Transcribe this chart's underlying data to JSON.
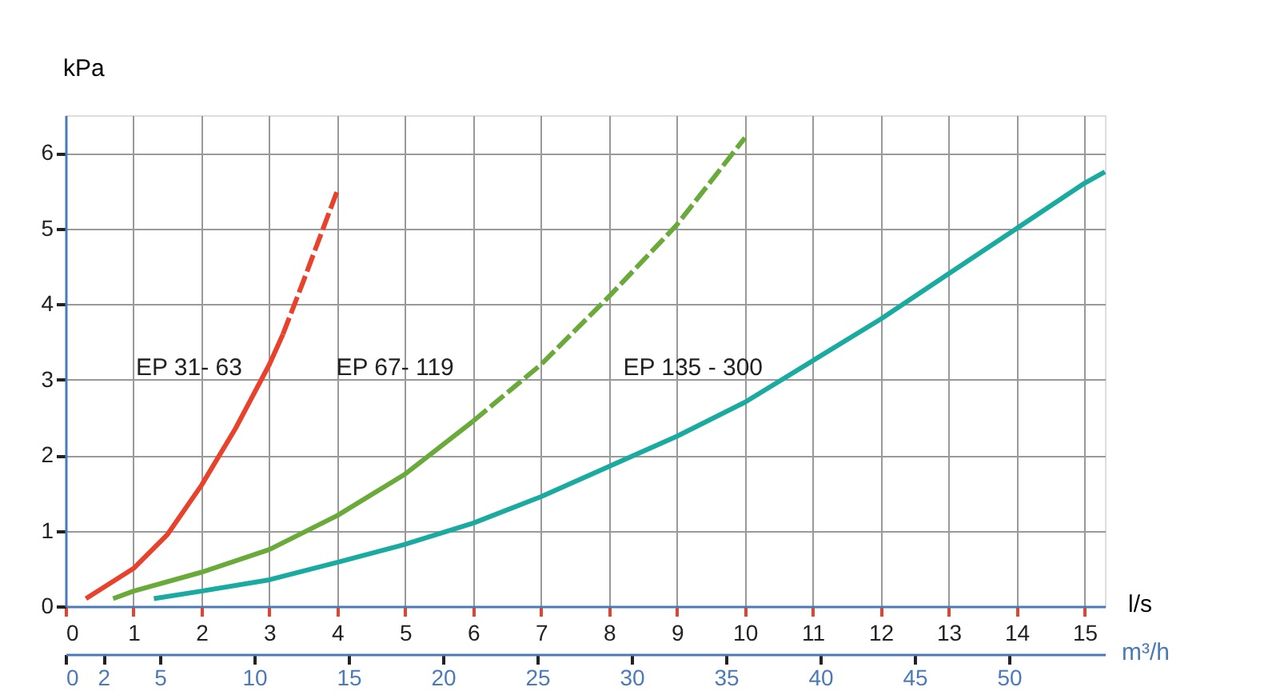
{
  "chart_data": {
    "type": "line",
    "xlabel": "l/s",
    "ylabel": "kPa",
    "x2label": "m³/h",
    "xlim": [
      0,
      15.3
    ],
    "xticks": [
      0,
      1,
      2,
      3,
      4,
      5,
      6,
      7,
      8,
      9,
      10,
      11,
      12,
      13,
      14,
      15
    ],
    "ylim": [
      0,
      6.5
    ],
    "yticks": [
      0,
      1,
      2,
      3,
      4,
      5,
      6
    ],
    "x2lim": [
      0,
      55.08
    ],
    "x2ticks": [
      0,
      2,
      5,
      10,
      15,
      20,
      25,
      30,
      35,
      40,
      45,
      50
    ],
    "grid": true,
    "marker": "none",
    "series": [
      {
        "name": "EP 31- 63",
        "color": "#e8412c",
        "line_style": "solid",
        "x": [
          0.3,
          1,
          1.5,
          2,
          2.5,
          3,
          3.2
        ],
        "values": [
          0.1,
          0.5,
          0.95,
          1.6,
          2.35,
          3.2,
          3.6
        ]
      },
      {
        "color": "#e8412c",
        "line_style": "dashed",
        "x": [
          3.2,
          3.5,
          4
        ],
        "values": [
          3.6,
          4.3,
          5.5
        ]
      },
      {
        "name": "EP 67- 119",
        "color": "#6aaa3a",
        "line_style": "solid",
        "x": [
          0.7,
          1,
          2,
          3,
          4,
          5,
          6
        ],
        "values": [
          0.1,
          0.2,
          0.45,
          0.75,
          1.2,
          1.75,
          2.45
        ]
      },
      {
        "color": "#6aaa3a",
        "line_style": "dashed",
        "x": [
          6,
          7,
          8,
          9,
          10
        ],
        "values": [
          2.45,
          3.2,
          4.1,
          5.05,
          6.2
        ]
      },
      {
        "name": "EP 135 - 300",
        "color": "#1aaaa0",
        "line_style": "solid",
        "x": [
          1.3,
          2,
          3,
          4,
          5,
          6,
          7,
          8,
          9,
          10,
          11,
          12,
          13,
          14,
          15,
          15.3
        ],
        "values": [
          0.1,
          0.2,
          0.35,
          0.58,
          0.82,
          1.1,
          1.45,
          1.85,
          2.25,
          2.7,
          3.25,
          3.8,
          4.4,
          5.0,
          5.6,
          5.75
        ]
      }
    ]
  }
}
